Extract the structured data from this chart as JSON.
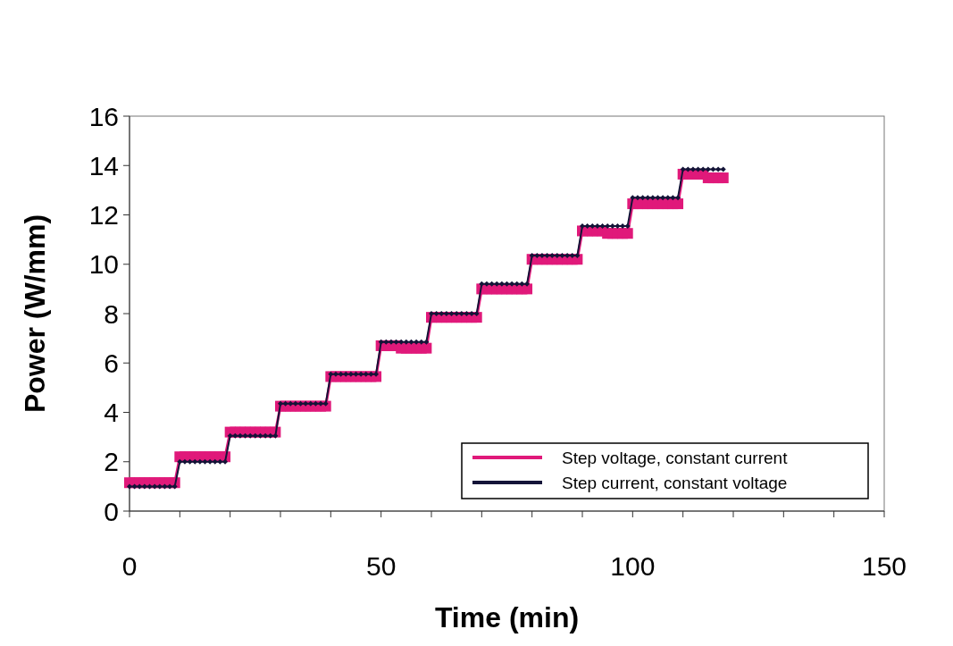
{
  "chart_data": {
    "type": "line",
    "xlabel": "Time (min)",
    "ylabel": "Power (W/mm)",
    "x": [
      0,
      1,
      2,
      3,
      4,
      5,
      6,
      7,
      8,
      9,
      10,
      11,
      12,
      13,
      14,
      15,
      16,
      17,
      18,
      19,
      20,
      21,
      22,
      23,
      24,
      25,
      26,
      27,
      28,
      29,
      30,
      31,
      32,
      33,
      34,
      35,
      36,
      37,
      38,
      39,
      40,
      41,
      42,
      43,
      44,
      45,
      46,
      47,
      48,
      49,
      50,
      51,
      52,
      53,
      54,
      55,
      56,
      57,
      58,
      59,
      60,
      61,
      62,
      63,
      64,
      65,
      66,
      67,
      68,
      69,
      70,
      71,
      72,
      73,
      74,
      75,
      76,
      77,
      78,
      79,
      80,
      81,
      82,
      83,
      84,
      85,
      86,
      87,
      88,
      89,
      90,
      91,
      92,
      93,
      94,
      95,
      96,
      97,
      98,
      99,
      100,
      101,
      102,
      103,
      104,
      105,
      106,
      107,
      108,
      109,
      110,
      111,
      112,
      113,
      114,
      115,
      116,
      117,
      118
    ],
    "series": [
      {
        "name": "Step voltage, constant current",
        "color": "#e0197a",
        "marker": "square",
        "values": [
          1.15,
          1.15,
          1.15,
          1.15,
          1.15,
          1.15,
          1.15,
          1.15,
          1.15,
          1.15,
          2.2,
          2.2,
          2.2,
          2.2,
          2.2,
          2.2,
          2.2,
          2.2,
          2.2,
          2.2,
          3.2,
          3.2,
          3.2,
          3.2,
          3.2,
          3.2,
          3.2,
          3.2,
          3.2,
          3.2,
          4.25,
          4.25,
          4.25,
          4.25,
          4.25,
          4.25,
          4.25,
          4.25,
          4.25,
          4.25,
          5.45,
          5.45,
          5.45,
          5.45,
          5.45,
          5.45,
          5.45,
          5.45,
          5.45,
          5.45,
          6.7,
          6.7,
          6.7,
          6.7,
          6.6,
          6.6,
          6.6,
          6.6,
          6.6,
          6.6,
          7.85,
          7.85,
          7.85,
          7.85,
          7.85,
          7.85,
          7.85,
          7.85,
          7.85,
          7.85,
          9.0,
          9.0,
          9.0,
          9.0,
          9.0,
          9.0,
          9.0,
          9.0,
          9.0,
          9.0,
          10.2,
          10.2,
          10.2,
          10.2,
          10.2,
          10.2,
          10.2,
          10.2,
          10.2,
          10.2,
          11.35,
          11.35,
          11.35,
          11.35,
          11.35,
          11.25,
          11.25,
          11.25,
          11.25,
          11.25,
          12.45,
          12.45,
          12.45,
          12.45,
          12.45,
          12.45,
          12.45,
          12.45,
          12.45,
          12.45,
          13.65,
          13.65,
          13.65,
          13.65,
          13.65,
          13.5,
          13.5,
          13.5,
          13.5
        ]
      },
      {
        "name": "Step current, constant voltage",
        "color": "#141438",
        "marker": "diamond",
        "values": [
          1.0,
          1.0,
          1.0,
          1.0,
          1.0,
          1.0,
          1.0,
          1.0,
          1.0,
          1.0,
          2.0,
          2.0,
          2.0,
          2.0,
          2.0,
          2.0,
          2.0,
          2.0,
          2.0,
          2.0,
          3.05,
          3.05,
          3.05,
          3.05,
          3.05,
          3.05,
          3.05,
          3.05,
          3.05,
          3.05,
          4.35,
          4.35,
          4.35,
          4.35,
          4.35,
          4.35,
          4.35,
          4.35,
          4.35,
          4.35,
          5.55,
          5.55,
          5.55,
          5.55,
          5.55,
          5.55,
          5.55,
          5.55,
          5.55,
          5.55,
          6.85,
          6.85,
          6.85,
          6.85,
          6.85,
          6.85,
          6.85,
          6.85,
          6.85,
          6.85,
          8.0,
          8.0,
          8.0,
          8.0,
          8.0,
          8.0,
          8.0,
          8.0,
          8.0,
          8.0,
          9.2,
          9.2,
          9.2,
          9.2,
          9.2,
          9.2,
          9.2,
          9.2,
          9.2,
          9.2,
          10.35,
          10.35,
          10.35,
          10.35,
          10.35,
          10.35,
          10.35,
          10.35,
          10.35,
          10.35,
          11.55,
          11.55,
          11.55,
          11.55,
          11.55,
          11.55,
          11.55,
          11.55,
          11.55,
          11.55,
          12.7,
          12.7,
          12.7,
          12.7,
          12.7,
          12.7,
          12.7,
          12.7,
          12.7,
          12.7,
          13.85,
          13.85,
          13.85,
          13.85,
          13.85,
          13.85,
          13.85,
          13.85,
          13.85
        ]
      }
    ],
    "xlim": [
      0,
      150
    ],
    "xticks": [
      0,
      {
        "value": 10,
        "label": null
      },
      {
        "value": 20,
        "label": null
      },
      {
        "value": 30,
        "label": null
      },
      {
        "value": 40,
        "label": null
      },
      50,
      {
        "value": 60,
        "label": null
      },
      {
        "value": 70,
        "label": null
      },
      {
        "value": 80,
        "label": null
      },
      {
        "value": 90,
        "label": null
      },
      100,
      {
        "value": 110,
        "label": null
      },
      {
        "value": 120,
        "label": null
      },
      {
        "value": 130,
        "label": null
      },
      {
        "value": 140,
        "label": null
      },
      150
    ],
    "ylim": [
      0,
      16
    ],
    "yticks": [
      0,
      2,
      4,
      6,
      8,
      10,
      12,
      14,
      16
    ],
    "grid": false,
    "legend": "bottom right",
    "line_style": "solid"
  }
}
